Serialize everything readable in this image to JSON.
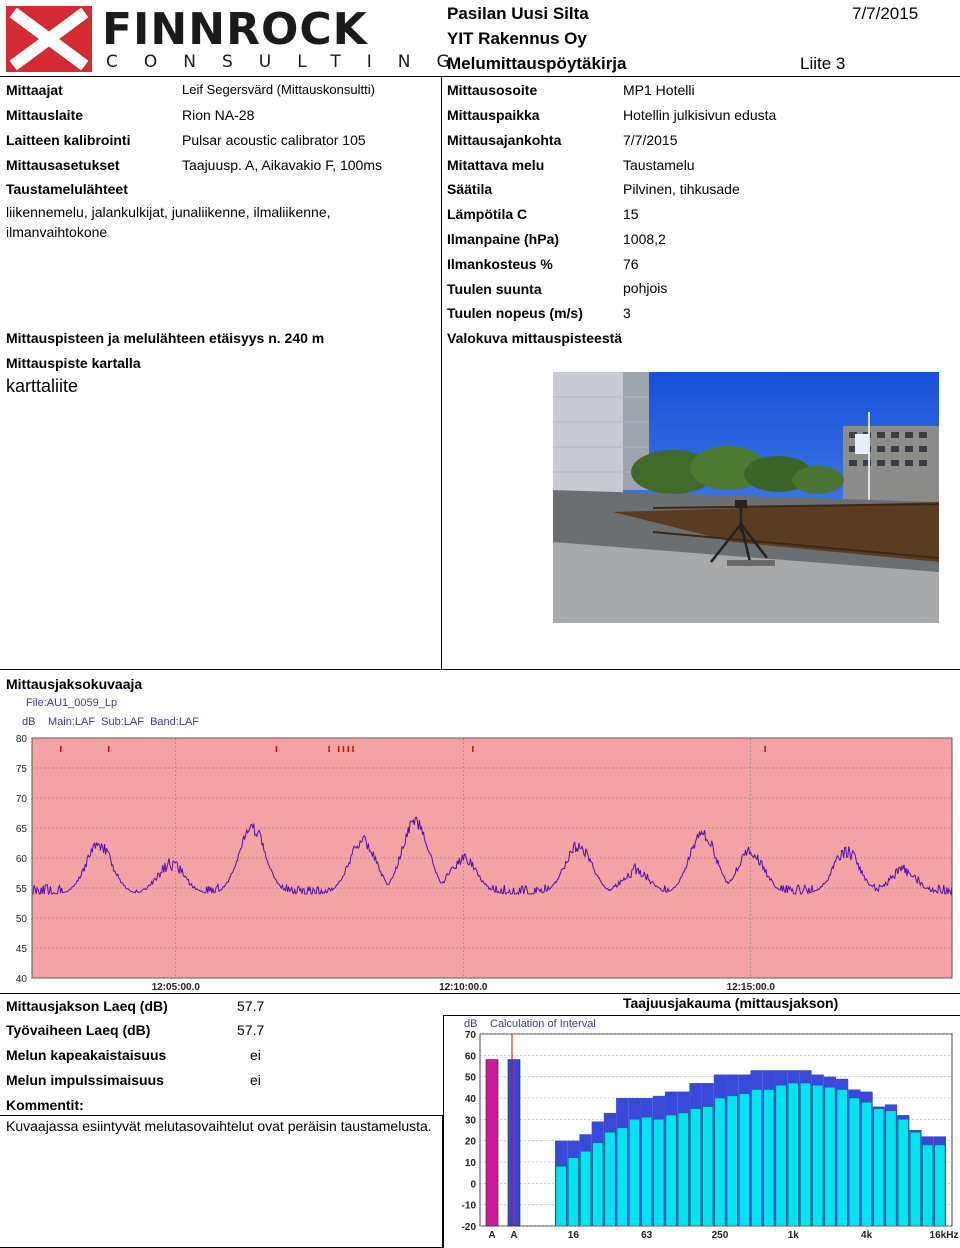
{
  "logo": {
    "word": "FINNROCK",
    "sub": "CONSULTING"
  },
  "header": {
    "site": "Pasilan Uusi Silta",
    "company": "YIT Rakennus Oy",
    "doc_title": "Melumittauspöytäkirja",
    "attachment": "Liite 3",
    "date": "7/7/2015"
  },
  "left_fields": [
    {
      "label": "Mittaajat",
      "value": "Leif Segersvärd (Mittauskonsultti)"
    },
    {
      "label": "Mittauslaite",
      "value": "Rion NA-28"
    },
    {
      "label": "Laitteen kalibrointi",
      "value": "Pulsar acoustic calibrator 105"
    },
    {
      "label": "Mittausasetukset",
      "value": "Taajuusp. A, Aikavakio F, 100ms"
    }
  ],
  "right_fields": [
    {
      "label": "Mittausosoite",
      "value": "MP1 Hotelli"
    },
    {
      "label": "Mittauspaikka",
      "value": "Hotellin julkisivun edusta"
    },
    {
      "label": "Mittausajankohta",
      "value": "7/7/2015"
    },
    {
      "label": "Mitattava melu",
      "value": "Taustamelu"
    }
  ],
  "background_noise": {
    "label": "Taustamelulähteet",
    "line1": "liikennemelu, jalankulkijat, junaliikenne, ilmaliikenne,",
    "line2": "ilmanvaihtokone"
  },
  "weather": [
    {
      "label": "Säätila",
      "value": "Pilvinen, tihkusade"
    },
    {
      "label": "Lämpötila C",
      "value": "15"
    },
    {
      "label": "Ilmanpaine (hPa)",
      "value": "1008,2"
    },
    {
      "label": "Ilmankosteus %",
      "value": "76"
    },
    {
      "label": "Tuulen suunta",
      "value": "pohjois"
    },
    {
      "label": "Tuulen nopeus (m/s)",
      "value": "3"
    }
  ],
  "distance_label": "Mittauspisteen ja melulähteen etäisyys n. 240 m",
  "map_label": "Mittauspiste kartalla",
  "map_value": "karttaliite",
  "photo_label": "Valokuva mittauspisteestä",
  "period_chart_label": "Mittausjaksokuvaaja",
  "results": [
    {
      "label": "Mittausjakson Laeq (dB)",
      "value": "57.7"
    },
    {
      "label": "Työvaiheen Laeq (dB)",
      "value": "57.7"
    },
    {
      "label": "Melun kapeakaistaisuus",
      "value": "ei"
    },
    {
      "label": "Melun impulssimaisuus",
      "value": "ei"
    }
  ],
  "comments_label": "Kommentit:",
  "comments_text": "Kuvaajassa esiintyvät melutasovaihtelut ovat peräisin taustamelusta.",
  "spectrum_title": "Taajuusjakauma (mittausjakson)",
  "colors": {
    "plot_bg": "#f4a4a4",
    "trace": "#5010b0",
    "bar_cyan": "#00e5f0",
    "bar_blue": "#3a48d8",
    "bar_magenta": "#cc1a9a"
  },
  "chart_data": [
    {
      "type": "line",
      "file": "File:AU1_0059_Lp",
      "unit": "dB",
      "settings": "Main:LAF  Sub:LAF  Band:LAF",
      "x_ticks": [
        "12:05:00.0",
        "12:10:00.0",
        "12:15:00.0"
      ],
      "xlim": [
        "12:02:30",
        "12:18:30"
      ],
      "ylim": [
        40,
        80
      ],
      "y_ticks": [
        40,
        45,
        50,
        55,
        60,
        65,
        70,
        75,
        80
      ],
      "grid": true,
      "peaks": [
        {
          "t": "12:03:40",
          "level": 62
        },
        {
          "t": "12:04:55",
          "level": 59
        },
        {
          "t": "12:06:20",
          "level": 65
        },
        {
          "t": "12:08:15",
          "level": 63
        },
        {
          "t": "12:09:10",
          "level": 66
        },
        {
          "t": "12:10:00",
          "level": 60
        },
        {
          "t": "12:12:00",
          "level": 62
        },
        {
          "t": "12:13:00",
          "level": 58
        },
        {
          "t": "12:14:10",
          "level": 64
        },
        {
          "t": "12:15:00",
          "level": 61
        },
        {
          "t": "12:16:40",
          "level": 61
        },
        {
          "t": "12:17:40",
          "level": 58
        }
      ],
      "baseline": 54
    },
    {
      "type": "bar",
      "title": "Calculation of Interval",
      "unit": "dB",
      "ylim": [
        -20,
        70
      ],
      "y_ticks": [
        -20,
        -10,
        0,
        10,
        20,
        30,
        40,
        50,
        60,
        70
      ],
      "x_tick_labels": [
        "A",
        "A",
        "16",
        "63",
        "250",
        "1k",
        "4k",
        "16kHz"
      ],
      "overall": [
        {
          "label": "A",
          "value": 58
        },
        {
          "label": "A",
          "value": 58
        }
      ],
      "bands": [
        "12.5",
        "16",
        "20",
        "25",
        "31.5",
        "40",
        "50",
        "63",
        "80",
        "100",
        "125",
        "160",
        "200",
        "250",
        "315",
        "400",
        "500",
        "630",
        "800",
        "1k",
        "1.25k",
        "1.6k",
        "2k",
        "2.5k",
        "3.15k",
        "4k",
        "5k",
        "6.3k",
        "8k",
        "10k",
        "12.5k",
        "16k"
      ],
      "max_values": [
        20,
        20,
        23,
        29,
        33,
        40,
        40,
        40,
        41,
        43,
        43,
        47,
        47,
        51,
        51,
        51,
        53,
        53,
        53,
        53,
        53,
        51,
        50,
        49,
        44,
        43,
        36,
        37,
        32,
        25,
        22,
        22
      ],
      "eq_values": [
        8,
        12,
        15,
        19,
        24,
        26,
        30,
        31,
        30,
        32,
        33,
        35,
        36,
        40,
        41,
        42,
        44,
        44,
        46,
        47,
        47,
        46,
        45,
        44,
        40,
        38,
        35,
        34,
        30,
        24,
        18,
        18
      ]
    }
  ]
}
